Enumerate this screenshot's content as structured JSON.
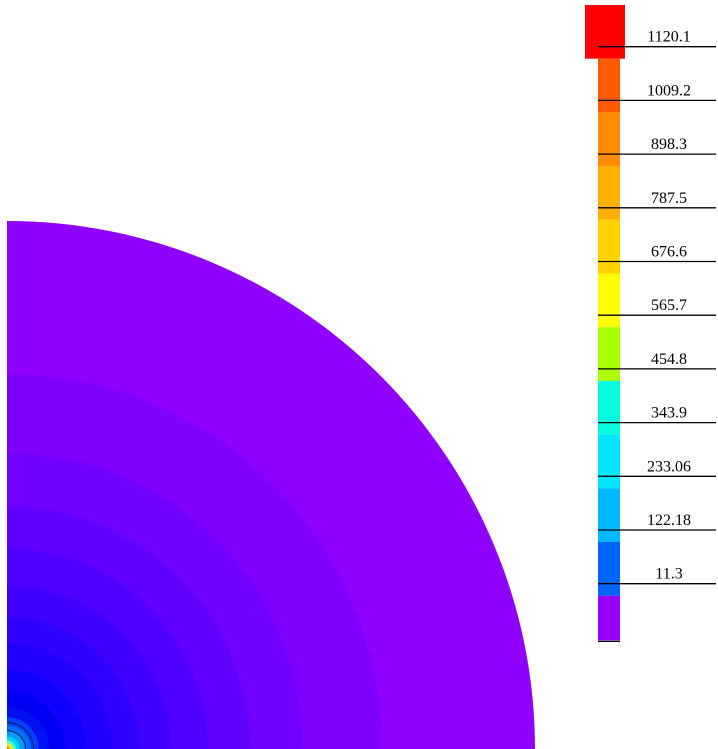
{
  "chart_data": {
    "type": "heatmap",
    "title": "",
    "xlabel": "",
    "ylabel": "",
    "description_free": true,
    "colorbar": {
      "levels": [
        {
          "label": "1120.1",
          "color": "#ff0000"
        },
        {
          "label": "1009.2",
          "color": "#ff5a00"
        },
        {
          "label": "898.3",
          "color": "#ff8c00"
        },
        {
          "label": "787.5",
          "color": "#ffaf00"
        },
        {
          "label": "676.6",
          "color": "#ffd200"
        },
        {
          "label": "565.7",
          "color": "#ffff00"
        },
        {
          "label": "454.8",
          "color": "#aaff00"
        },
        {
          "label": "343.9",
          "color": "#00ffdc"
        },
        {
          "label": "233.06",
          "color": "#00e6ff"
        },
        {
          "label": "122.18",
          "color": "#00b9ff"
        },
        {
          "label": "11.3",
          "color": "#0064ff"
        },
        {
          "label": "",
          "color": "#9600ff"
        }
      ]
    },
    "field": {
      "shape": "quarter-disk",
      "center_hot_color": "#ff0000",
      "outer_color": "#8f00ff",
      "bands": [
        {
          "r": 1.0,
          "color": "#8f00ff"
        },
        {
          "r": 0.71,
          "color": "#8000ff"
        },
        {
          "r": 0.56,
          "color": "#7000ff"
        },
        {
          "r": 0.46,
          "color": "#6000ff"
        },
        {
          "r": 0.38,
          "color": "#5000ff"
        },
        {
          "r": 0.31,
          "color": "#4000ff"
        },
        {
          "r": 0.25,
          "color": "#3000ff"
        },
        {
          "r": 0.2,
          "color": "#2000ff"
        },
        {
          "r": 0.15,
          "color": "#1000ff"
        },
        {
          "r": 0.11,
          "color": "#0000f5"
        },
        {
          "r": 0.08,
          "color": "#0010f0"
        },
        {
          "r": 0.06,
          "color": "#0040ff"
        },
        {
          "r": 0.045,
          "color": "#0070ff"
        },
        {
          "r": 0.033,
          "color": "#00a0ff"
        },
        {
          "r": 0.024,
          "color": "#00d0ff"
        },
        {
          "r": 0.017,
          "color": "#40ffd0"
        },
        {
          "r": 0.012,
          "color": "#c0ff40"
        },
        {
          "r": 0.008,
          "color": "#ffd200"
        },
        {
          "r": 0.004,
          "color": "#ff6000"
        }
      ]
    }
  }
}
